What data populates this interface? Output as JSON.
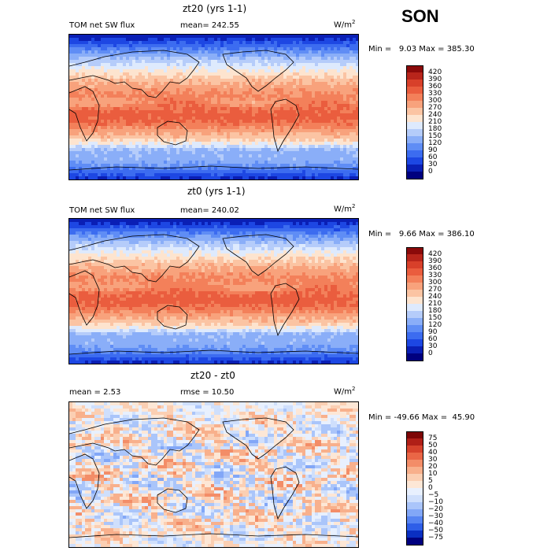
{
  "season": "SON",
  "colors": {
    "abs_scale": [
      "#00007f",
      "#0a1fb5",
      "#1d47e3",
      "#3c6cf0",
      "#5f8df5",
      "#8aaef8",
      "#b5ccfa",
      "#deeafd",
      "#fde4cf",
      "#fbc4a3",
      "#f8a27c",
      "#f3805a",
      "#ea5d3e",
      "#d8402a",
      "#b8251b",
      "#8b0a0a"
    ],
    "diff_scale": [
      "#00007f",
      "#0a2fc2",
      "#2e5ee8",
      "#5684f2",
      "#82a7f7",
      "#aac5fa",
      "#cfdffc",
      "#e8f0fe",
      "#fde7d6",
      "#fbcfb3",
      "#f8b08c",
      "#f38d68",
      "#ea6646",
      "#d6422c",
      "#b01f17",
      "#7d0606"
    ]
  },
  "panels": [
    {
      "title": "zt20 (yrs 1-1)",
      "left_label": "TOM net SW flux",
      "mean_label": "mean= 242.55",
      "units": "W/m",
      "units_exp": "2",
      "minmax": "Min =   9.03 Max = 385.30"
    },
    {
      "title": "zt0 (yrs 1-1)",
      "left_label": "TOM net SW flux",
      "mean_label": "mean= 240.02",
      "units": "W/m",
      "units_exp": "2",
      "minmax": "Min =   9.66 Max = 386.10"
    },
    {
      "title": "zt20 - zt0",
      "left_label": "mean =    2.53",
      "mean_label": "rmse =   10.50",
      "units": "W/m",
      "units_exp": "2",
      "minmax": "Min = -49.66 Max =  45.90"
    }
  ],
  "chart_data": [
    {
      "type": "heatmap",
      "title": "zt20 (yrs 1-1)",
      "variable": "TOM net SW flux",
      "units": "W/m2",
      "mean": 242.55,
      "min": 9.03,
      "max": 385.3,
      "colorbar_levels": [
        "420",
        "390",
        "360",
        "330",
        "300",
        "270",
        "240",
        "210",
        "180",
        "150",
        "120",
        "90",
        "60",
        "30",
        "0"
      ]
    },
    {
      "type": "heatmap",
      "title": "zt0 (yrs 1-1)",
      "variable": "TOM net SW flux",
      "units": "W/m2",
      "mean": 240.02,
      "min": 9.66,
      "max": 386.1,
      "colorbar_levels": [
        "420",
        "390",
        "360",
        "330",
        "300",
        "270",
        "240",
        "210",
        "180",
        "150",
        "120",
        "90",
        "60",
        "30",
        "0"
      ]
    },
    {
      "type": "heatmap",
      "title": "zt20 - zt0",
      "units": "W/m2",
      "mean": 2.53,
      "rmse": 10.5,
      "min": -49.66,
      "max": 45.9,
      "colorbar_levels": [
        "75",
        "50",
        "40",
        "30",
        "20",
        "10",
        "5",
        "0",
        "−5",
        "−10",
        "−20",
        "−30",
        "−40",
        "−50",
        "−75"
      ]
    }
  ]
}
